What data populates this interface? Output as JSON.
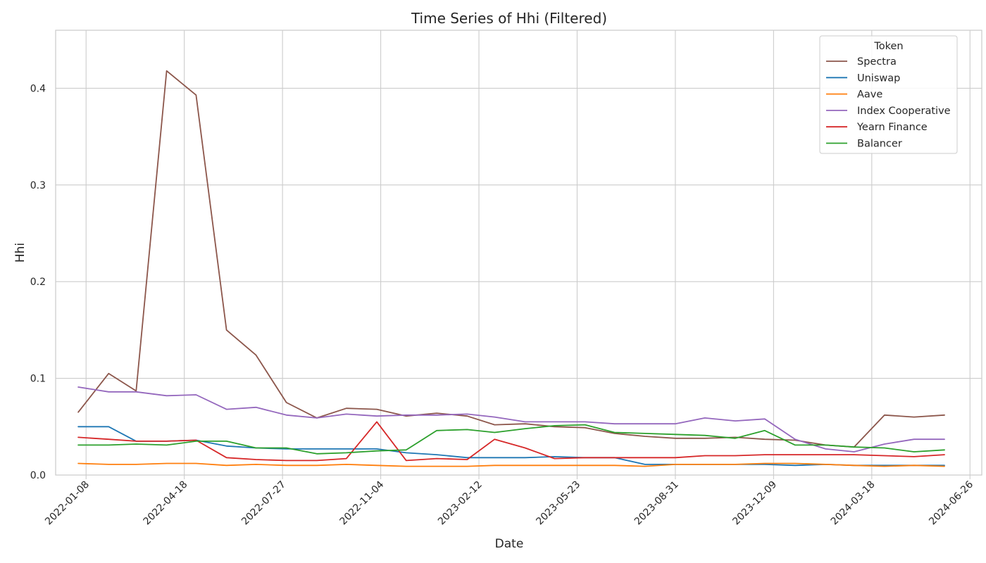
{
  "chart_data": {
    "type": "line",
    "title": "Time Series of Hhi (Filtered)",
    "xlabel": "Date",
    "ylabel": "Hhi",
    "ylim": [
      0,
      0.46
    ],
    "x_axis": {
      "scale": "time",
      "range": [
        "2021-12-08",
        "2024-07-08"
      ],
      "ticks": [
        "2022-01-08",
        "2022-04-18",
        "2022-07-27",
        "2022-11-04",
        "2023-02-12",
        "2023-05-23",
        "2023-08-31",
        "2023-12-09",
        "2024-03-18",
        "2024-06-26"
      ]
    },
    "y_ticks": [
      0.0,
      0.1,
      0.2,
      0.3,
      0.4
    ],
    "y_tick_labels": [
      "0.0",
      "0.1",
      "0.2",
      "0.3",
      "0.4"
    ],
    "grid": true,
    "legend": {
      "title": "Token",
      "placement": "top-right"
    },
    "x": [
      "2021-12-31",
      "2022-01-31",
      "2022-02-28",
      "2022-03-31",
      "2022-04-30",
      "2022-05-31",
      "2022-06-30",
      "2022-07-31",
      "2022-08-31",
      "2022-09-30",
      "2022-10-31",
      "2022-11-30",
      "2022-12-31",
      "2023-01-31",
      "2023-02-28",
      "2023-03-31",
      "2023-04-30",
      "2023-05-31",
      "2023-06-30",
      "2023-07-31",
      "2023-08-31",
      "2023-09-30",
      "2023-10-31",
      "2023-11-30",
      "2023-12-31",
      "2024-01-31",
      "2024-02-29",
      "2024-03-31",
      "2024-04-30",
      "2024-05-31"
    ],
    "series": [
      {
        "name": "Spectra",
        "color": "#8c564b",
        "values": [
          0.065,
          0.105,
          0.087,
          0.418,
          0.393,
          0.15,
          0.124,
          0.075,
          0.059,
          0.069,
          0.068,
          0.061,
          0.064,
          0.061,
          0.052,
          0.053,
          0.05,
          0.049,
          0.043,
          0.04,
          0.038,
          0.038,
          0.039,
          0.037,
          0.036,
          0.031,
          0.029,
          0.062,
          0.06,
          0.062
        ]
      },
      {
        "name": "Uniswap",
        "color": "#1f77b4",
        "values": [
          0.05,
          0.05,
          0.035,
          0.035,
          0.036,
          0.03,
          0.028,
          0.027,
          0.027,
          0.027,
          0.027,
          0.023,
          0.021,
          0.018,
          0.018,
          0.018,
          0.019,
          0.018,
          0.018,
          0.011,
          0.011,
          0.011,
          0.011,
          0.011,
          0.01,
          0.011,
          0.01,
          0.01,
          0.01,
          0.01
        ]
      },
      {
        "name": "Aave",
        "color": "#ff7f0e",
        "values": [
          0.012,
          0.011,
          0.011,
          0.012,
          0.012,
          0.01,
          0.011,
          0.01,
          0.01,
          0.011,
          0.01,
          0.009,
          0.009,
          0.009,
          0.01,
          0.01,
          0.01,
          0.01,
          0.01,
          0.009,
          0.011,
          0.011,
          0.011,
          0.012,
          0.012,
          0.011,
          0.01,
          0.009,
          0.01,
          0.009
        ]
      },
      {
        "name": "Index Cooperative",
        "color": "#9467bd",
        "values": [
          0.091,
          0.086,
          0.086,
          0.082,
          0.083,
          0.068,
          0.07,
          0.062,
          0.059,
          0.063,
          0.061,
          0.062,
          0.062,
          0.063,
          0.06,
          0.055,
          0.055,
          0.055,
          0.053,
          0.053,
          0.053,
          0.059,
          0.056,
          0.058,
          0.037,
          0.027,
          0.024,
          0.032,
          0.037,
          0.037
        ]
      },
      {
        "name": "Yearn Finance",
        "color": "#d62728",
        "values": [
          0.039,
          0.037,
          0.035,
          0.035,
          0.036,
          0.018,
          0.016,
          0.015,
          0.015,
          0.017,
          0.055,
          0.015,
          0.017,
          0.016,
          0.037,
          0.028,
          0.017,
          0.018,
          0.018,
          0.018,
          0.018,
          0.02,
          0.02,
          0.021,
          0.021,
          0.021,
          0.021,
          0.02,
          0.019,
          0.021
        ]
      },
      {
        "name": "Balancer",
        "color": "#2ca02c",
        "values": [
          0.031,
          0.031,
          0.032,
          0.031,
          0.035,
          0.035,
          0.028,
          0.028,
          0.022,
          0.023,
          0.025,
          0.026,
          0.046,
          0.047,
          0.044,
          0.048,
          0.051,
          0.052,
          0.044,
          0.043,
          0.042,
          0.041,
          0.038,
          0.046,
          0.031,
          0.031,
          0.029,
          0.028,
          0.024,
          0.026
        ]
      }
    ]
  }
}
